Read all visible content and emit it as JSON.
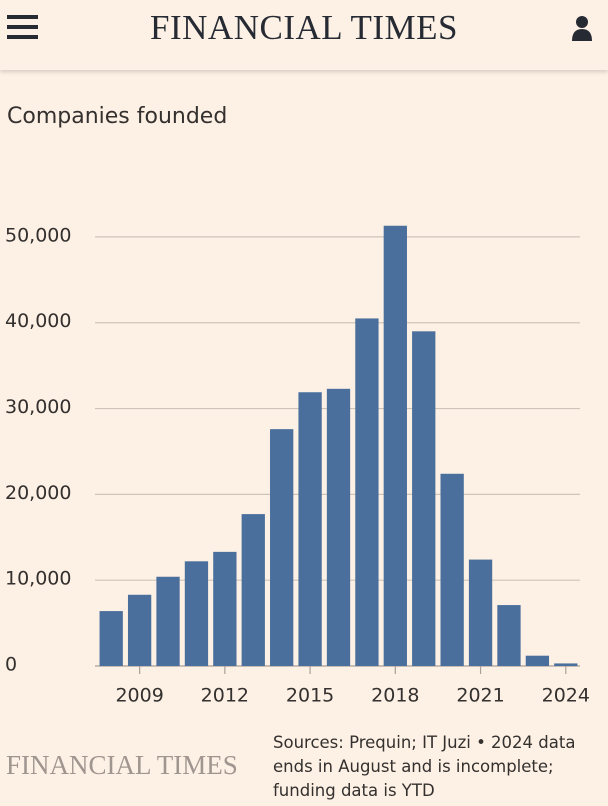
{
  "header": {
    "title": "FINANCIAL TIMES"
  },
  "chart_data": {
    "type": "bar",
    "title": "Companies founded",
    "categories": [
      null,
      "2009",
      null,
      null,
      "2012",
      null,
      null,
      "2015",
      null,
      null,
      "2018",
      null,
      null,
      "2021",
      null,
      null,
      "2024"
    ],
    "values": [
      6400,
      8300,
      10400,
      12200,
      13300,
      17700,
      27600,
      31900,
      32300,
      40500,
      51300,
      39000,
      22400,
      12400,
      7100,
      1200,
      300
    ],
    "color": "#4a6f9c",
    "ylim": [
      0,
      55000
    ],
    "yticks": [
      0,
      {
        "value": 10000,
        "label": "10,000"
      },
      {
        "value": 20000,
        "label": "20,000"
      },
      {
        "value": 30000,
        "label": "30,000"
      },
      {
        "value": 40000,
        "label": "40,000"
      },
      {
        "value": 50000,
        "label": "50,000"
      }
    ],
    "grid": true
  },
  "footer": {
    "logo": "FINANCIAL TIMES",
    "source": "Sources: Prequin; IT Juzi • 2024 data ends in August and is incomplete; funding data is YTD"
  }
}
